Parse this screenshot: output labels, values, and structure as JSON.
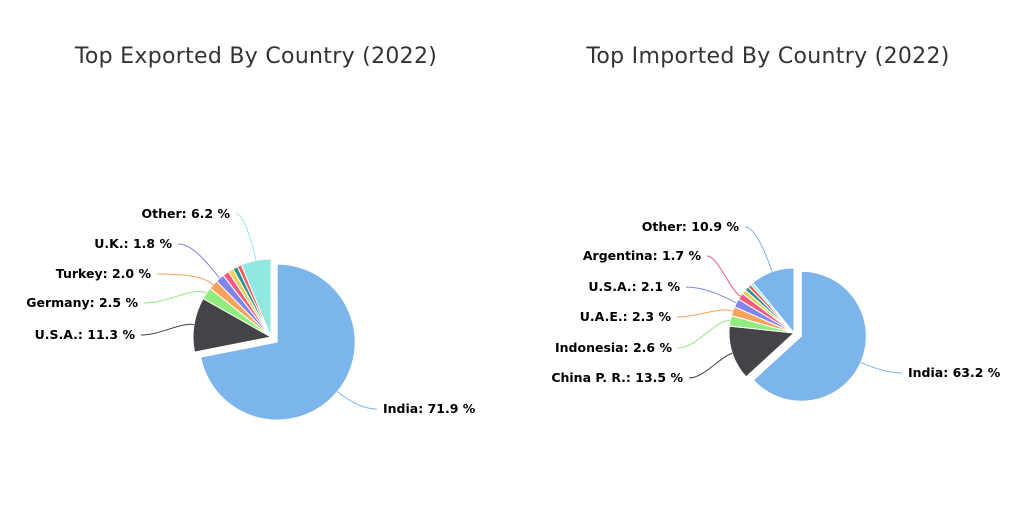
{
  "chart_data": [
    {
      "type": "pie",
      "title": "Top Exported By Country (2022)",
      "unit": "%",
      "slices": [
        {
          "name": "India",
          "value": 71.9,
          "color": "#7cb5ec"
        },
        {
          "name": "U.S.A.",
          "value": 11.3,
          "color": "#434348"
        },
        {
          "name": "Germany",
          "value": 2.5,
          "color": "#90ed7d"
        },
        {
          "name": "Turkey",
          "value": 2.0,
          "color": "#f7a35c"
        },
        {
          "name": "U.K.",
          "value": 1.8,
          "color": "#8085e9"
        },
        {
          "name": "",
          "value": 1.3,
          "color": "#f15c80"
        },
        {
          "name": "",
          "value": 1.1,
          "color": "#e4d354"
        },
        {
          "name": "",
          "value": 1.0,
          "color": "#2b908f"
        },
        {
          "name": "",
          "value": 0.9,
          "color": "#f45b5b"
        },
        {
          "name": "Other",
          "value": 6.2,
          "color": "#91e8e1"
        }
      ],
      "labels": [
        {
          "text": "India: 71.9 %",
          "slice": 0
        },
        {
          "text": "U.S.A.: 11.3 %",
          "slice": 1
        },
        {
          "text": "Germany: 2.5 %",
          "slice": 2
        },
        {
          "text": "Turkey: 2.0 %",
          "slice": 3
        },
        {
          "text": "U.K.: 1.8 %",
          "slice": 4
        },
        {
          "text": "Other: 6.2 %",
          "slice": 9
        }
      ]
    },
    {
      "type": "pie",
      "title": "Top Imported By Country (2022)",
      "unit": "%",
      "slices": [
        {
          "name": "India",
          "value": 63.2,
          "color": "#7cb5ec"
        },
        {
          "name": "China P. R.",
          "value": 13.5,
          "color": "#434348"
        },
        {
          "name": "Indonesia",
          "value": 2.6,
          "color": "#90ed7d"
        },
        {
          "name": "U.A.E.",
          "value": 2.3,
          "color": "#f7a35c"
        },
        {
          "name": "U.S.A.",
          "value": 2.1,
          "color": "#8085e9"
        },
        {
          "name": "Argentina",
          "value": 1.7,
          "color": "#f15c80"
        },
        {
          "name": "",
          "value": 1.1,
          "color": "#e4d354"
        },
        {
          "name": "",
          "value": 1.0,
          "color": "#2b908f"
        },
        {
          "name": "",
          "value": 0.9,
          "color": "#f45b5b"
        },
        {
          "name": "",
          "value": 0.7,
          "color": "#91e8e1"
        },
        {
          "name": "Other",
          "value": 10.9,
          "color": "#7cb5ec"
        }
      ],
      "labels": [
        {
          "text": "India: 63.2 %",
          "slice": 0
        },
        {
          "text": "China P. R.: 13.5 %",
          "slice": 1
        },
        {
          "text": "Indonesia: 2.6 %",
          "slice": 2
        },
        {
          "text": "U.A.E.: 2.3 %",
          "slice": 3
        },
        {
          "text": "U.S.A.: 2.1 %",
          "slice": 4
        },
        {
          "text": "Argentina: 1.7 %",
          "slice": 5
        },
        {
          "text": "Other: 10.9 %",
          "slice": 10
        }
      ]
    }
  ]
}
